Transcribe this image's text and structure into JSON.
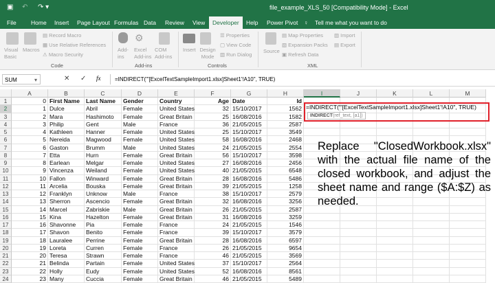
{
  "window": {
    "title": "file_example_XLS_50  [Compatibility Mode]  -  Excel",
    "icons": [
      "save-icon",
      "undo-icon",
      "redo-icon"
    ]
  },
  "tabs": [
    "File",
    "Home",
    "Insert",
    "Page Layout",
    "Formulas",
    "Data",
    "Review",
    "View",
    "Developer",
    "Help",
    "Power Pivot"
  ],
  "active_tab": "Developer",
  "tell_me": "Tell me what you want to do",
  "ribbon": {
    "code": {
      "label": "Code",
      "visual_basic": "Visual Basic",
      "macros": "Macros",
      "record": "Record Macro",
      "relative": "Use Relative References",
      "security": "Macro Security"
    },
    "addins": {
      "label": "Add-ins",
      "addins": "Add-ins",
      "excel": "Excel Add-ins",
      "com": "COM Add-ins"
    },
    "controls": {
      "label": "Controls",
      "insert": "Insert",
      "design": "Design Mode",
      "properties": "Properties",
      "view_code": "View Code",
      "run_dialog": "Run Dialog"
    },
    "xml": {
      "label": "XML",
      "source": "Source",
      "map": "Map Properties",
      "expansion": "Expansion Packs",
      "refresh": "Refresh Data",
      "import": "Import",
      "export": "Export"
    }
  },
  "formula_bar": {
    "name_box": "SUM",
    "cancel": "✕",
    "enter": "✓",
    "fx": "fx",
    "formula": "=INDIRECT(\"'[ExcelTextSampleImport1.xlsx]Sheet1'!A10\", TRUE)"
  },
  "columns": [
    "A",
    "B",
    "C",
    "D",
    "E",
    "F",
    "G",
    "H",
    "I",
    "J",
    "K",
    "L",
    "M"
  ],
  "header_row": [
    "0",
    "First Name",
    "Last Name",
    "Gender",
    "Country",
    "Age",
    "Date",
    "Id"
  ],
  "rows": [
    [
      "1",
      "Dulce",
      "Abril",
      "Female",
      "United States",
      "32",
      "15/10/2017",
      "1562"
    ],
    [
      "2",
      "Mara",
      "Hashimoto",
      "Female",
      "Great Britain",
      "25",
      "16/08/2016",
      "1582"
    ],
    [
      "3",
      "Philip",
      "Gent",
      "Male",
      "France",
      "36",
      "21/05/2015",
      "2587"
    ],
    [
      "4",
      "Kathleen",
      "Hanner",
      "Female",
      "United States",
      "25",
      "15/10/2017",
      "3549"
    ],
    [
      "5",
      "Nereida",
      "Magwood",
      "Female",
      "United States",
      "58",
      "16/08/2016",
      "2468"
    ],
    [
      "6",
      "Gaston",
      "Brumm",
      "Male",
      "United States",
      "24",
      "21/05/2015",
      "2554"
    ],
    [
      "7",
      "Etta",
      "Hurn",
      "Female",
      "Great Britain",
      "56",
      "15/10/2017",
      "3598"
    ],
    [
      "8",
      "Earlean",
      "Melgar",
      "Female",
      "United States",
      "27",
      "16/08/2016",
      "2456"
    ],
    [
      "9",
      "Vincenza",
      "Weiland",
      "Female",
      "United States",
      "40",
      "21/05/2015",
      "6548"
    ],
    [
      "10",
      "Fallon",
      "Winward",
      "Female",
      "Great Britain",
      "28",
      "16/08/2016",
      "5486"
    ],
    [
      "11",
      "Arcelia",
      "Bouska",
      "Female",
      "Great Britain",
      "39",
      "21/05/2015",
      "1258"
    ],
    [
      "12",
      "Franklyn",
      "Unknow",
      "Male",
      "France",
      "38",
      "15/10/2017",
      "2579"
    ],
    [
      "13",
      "Sherron",
      "Ascencio",
      "Female",
      "Great Britain",
      "32",
      "16/08/2016",
      "3256"
    ],
    [
      "14",
      "Marcel",
      "Zabriskie",
      "Male",
      "Great Britain",
      "26",
      "21/05/2015",
      "2587"
    ],
    [
      "15",
      "Kina",
      "Hazelton",
      "Female",
      "Great Britain",
      "31",
      "16/08/2016",
      "3259"
    ],
    [
      "16",
      "Shavonne",
      "Pia",
      "Female",
      "France",
      "24",
      "21/05/2015",
      "1546"
    ],
    [
      "17",
      "Shavon",
      "Benito",
      "Female",
      "France",
      "39",
      "15/10/2017",
      "3579"
    ],
    [
      "18",
      "Lauralee",
      "Perrine",
      "Female",
      "Great Britain",
      "28",
      "16/08/2016",
      "6597"
    ],
    [
      "19",
      "Loreta",
      "Curren",
      "Female",
      "France",
      "26",
      "21/05/2015",
      "9654"
    ],
    [
      "20",
      "Teresa",
      "Strawn",
      "Female",
      "France",
      "46",
      "21/05/2015",
      "3569"
    ],
    [
      "21",
      "Belinda",
      "Partain",
      "Female",
      "United States",
      "37",
      "15/10/2017",
      "2564"
    ],
    [
      "22",
      "Holly",
      "Eudy",
      "Female",
      "United States",
      "52",
      "16/08/2016",
      "8561"
    ],
    [
      "23",
      "Many",
      "Cuccia",
      "Female",
      "Great Britain",
      "46",
      "21/05/2015",
      "5489"
    ]
  ],
  "edit_cell": {
    "text": "=INDIRECT(\"'[ExcelTextSampleImport1.xlsx]Sheet1'!A10\", TRUE)",
    "tooltip_fn": "INDIRECT",
    "tooltip_args": "(ref_text, [a1])"
  },
  "note": "Replace \"ClosedWorkbook.xlsx\" with the actual file name of the closed workbook, and adjust the sheet name and range ($A:$Z) as needed.",
  "colors": {
    "excel_green": "#217346",
    "highlight": "#e0202a"
  }
}
